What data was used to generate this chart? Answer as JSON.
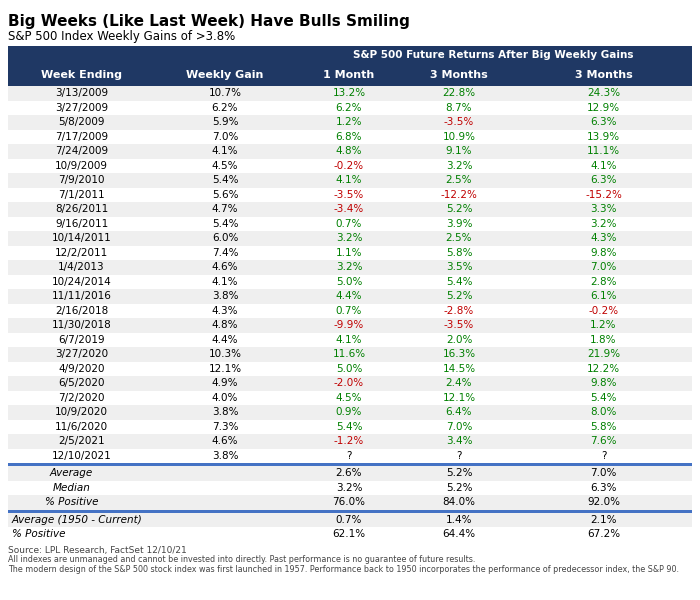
{
  "title": "Big Weeks (Like Last Week) Have Bulls Smiling",
  "subtitle": "S&P 500 Index Weekly Gains of >3.8%",
  "header1": "S&P 500 Future Returns After Big Weekly Gains",
  "col_headers": [
    "Week Ending",
    "Weekly Gain",
    "1 Month",
    "3 Months",
    "3 Months"
  ],
  "rows": [
    [
      "3/13/2009",
      "10.7%",
      "13.2%",
      "22.8%",
      "24.3%"
    ],
    [
      "3/27/2009",
      "6.2%",
      "6.2%",
      "8.7%",
      "12.9%"
    ],
    [
      "5/8/2009",
      "5.9%",
      "1.2%",
      "-3.5%",
      "6.3%"
    ],
    [
      "7/17/2009",
      "7.0%",
      "6.8%",
      "10.9%",
      "13.9%"
    ],
    [
      "7/24/2009",
      "4.1%",
      "4.8%",
      "9.1%",
      "11.1%"
    ],
    [
      "10/9/2009",
      "4.5%",
      "-0.2%",
      "3.2%",
      "4.1%"
    ],
    [
      "7/9/2010",
      "5.4%",
      "4.1%",
      "2.5%",
      "6.3%"
    ],
    [
      "7/1/2011",
      "5.6%",
      "-3.5%",
      "-12.2%",
      "-15.2%"
    ],
    [
      "8/26/2011",
      "4.7%",
      "-3.4%",
      "5.2%",
      "3.3%"
    ],
    [
      "9/16/2011",
      "5.4%",
      "0.7%",
      "3.9%",
      "3.2%"
    ],
    [
      "10/14/2011",
      "6.0%",
      "3.2%",
      "2.5%",
      "4.3%"
    ],
    [
      "12/2/2011",
      "7.4%",
      "1.1%",
      "5.8%",
      "9.8%"
    ],
    [
      "1/4/2013",
      "4.6%",
      "3.2%",
      "3.5%",
      "7.0%"
    ],
    [
      "10/24/2014",
      "4.1%",
      "5.0%",
      "5.4%",
      "2.8%"
    ],
    [
      "11/11/2016",
      "3.8%",
      "4.4%",
      "5.2%",
      "6.1%"
    ],
    [
      "2/16/2018",
      "4.3%",
      "0.7%",
      "-2.8%",
      "-0.2%"
    ],
    [
      "11/30/2018",
      "4.8%",
      "-9.9%",
      "-3.5%",
      "1.2%"
    ],
    [
      "6/7/2019",
      "4.4%",
      "4.1%",
      "2.0%",
      "1.8%"
    ],
    [
      "3/27/2020",
      "10.3%",
      "11.6%",
      "16.3%",
      "21.9%"
    ],
    [
      "4/9/2020",
      "12.1%",
      "5.0%",
      "14.5%",
      "12.2%"
    ],
    [
      "6/5/2020",
      "4.9%",
      "-2.0%",
      "2.4%",
      "9.8%"
    ],
    [
      "7/2/2020",
      "4.0%",
      "4.5%",
      "12.1%",
      "5.4%"
    ],
    [
      "10/9/2020",
      "3.8%",
      "0.9%",
      "6.4%",
      "8.0%"
    ],
    [
      "11/6/2020",
      "7.3%",
      "5.4%",
      "7.0%",
      "5.8%"
    ],
    [
      "2/5/2021",
      "4.6%",
      "-1.2%",
      "3.4%",
      "7.6%"
    ],
    [
      "12/10/2021",
      "3.8%",
      "?",
      "?",
      "?"
    ]
  ],
  "summary_rows": [
    [
      "Average",
      "",
      "2.6%",
      "5.2%",
      "7.0%"
    ],
    [
      "Median",
      "",
      "3.2%",
      "5.2%",
      "6.3%"
    ],
    [
      "% Positive",
      "",
      "76.0%",
      "84.0%",
      "92.0%"
    ]
  ],
  "avg1950_rows": [
    [
      "Average (1950 - Current)",
      "",
      "0.7%",
      "1.4%",
      "2.1%"
    ],
    [
      "% Positive",
      "",
      "62.1%",
      "64.4%",
      "67.2%"
    ]
  ],
  "source_text": "Source: LPL Research, FactSet 12/10/21",
  "footnote1": "All indexes are unmanaged and cannot be invested into directly. Past performance is no guarantee of future results.",
  "footnote2": "The modern design of the S&P 500 stock index was first launched in 1957. Performance back to 1950 incorporates the performance of predecessor index, the S&P 90.",
  "header_bg": "#1f3864",
  "header_fg": "#ffffff",
  "row_bg_odd": "#efefef",
  "row_bg_even": "#ffffff",
  "green_color": "#008000",
  "red_color": "#c00000",
  "black_color": "#000000",
  "separator_color": "#4472c4"
}
